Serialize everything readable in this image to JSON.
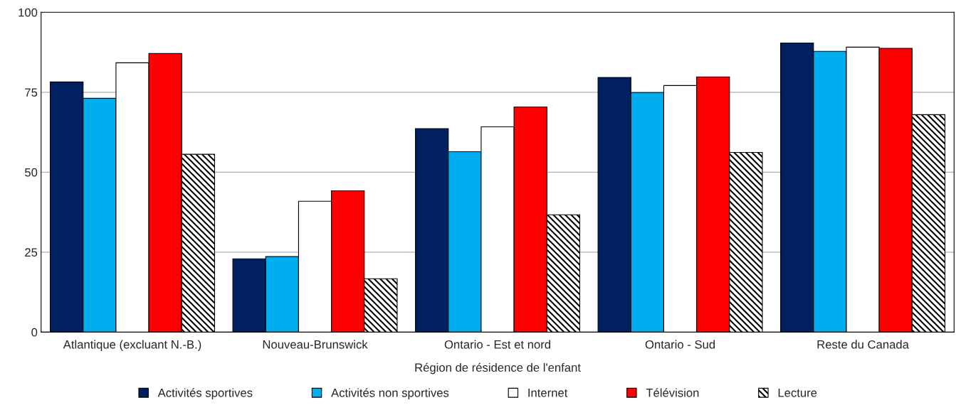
{
  "chart_data": {
    "type": "bar",
    "xlabel": "Région de résidence de l'enfant",
    "categories": [
      "Atlantique (excluant N.-B.)",
      "Nouveau-Brunswick",
      "Ontario - Est et nord",
      "Ontario - Sud",
      "Reste du Canada"
    ],
    "series": [
      {
        "name": "Activités sportives",
        "color": "#002060",
        "values": [
          78.2,
          22.9,
          63.6,
          79.6,
          90.4
        ]
      },
      {
        "name": "Activités non sportives",
        "color": "#00aeef",
        "values": [
          73.1,
          23.6,
          56.4,
          74.9,
          87.8
        ]
      },
      {
        "name": "Internet",
        "color": "#ffffff",
        "values": [
          84.2,
          40.9,
          64.2,
          77.1,
          89.1
        ]
      },
      {
        "name": "Télévision",
        "color": "#ff0000",
        "values": [
          87.1,
          44.2,
          70.4,
          79.8,
          88.7
        ]
      },
      {
        "name": "Lecture",
        "color": "#000000",
        "values": [
          55.6,
          16.7,
          36.7,
          56.2,
          68.0
        ]
      }
    ],
    "ylim": [
      0,
      100
    ],
    "yticks": [
      0,
      25,
      50,
      75,
      100
    ],
    "grid": "y",
    "legend": "bottom"
  }
}
